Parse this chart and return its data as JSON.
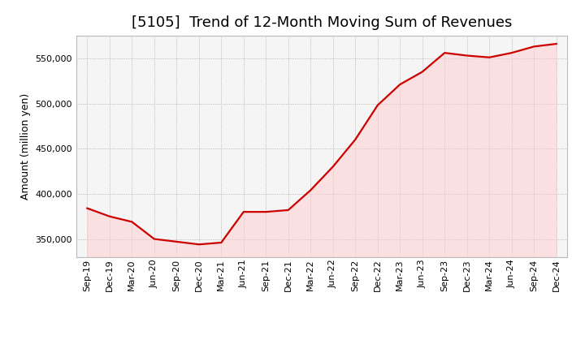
{
  "title": "[5105]  Trend of 12-Month Moving Sum of Revenues",
  "ylabel": "Amount (million yen)",
  "line_color": "#cc0000",
  "fill_color": "#ffcccc",
  "fill_alpha": 0.5,
  "background_color": "#ffffff",
  "plot_bg_color": "#f5f5f5",
  "grid_color": "#999999",
  "labels": [
    "Sep-19",
    "Dec-19",
    "Mar-20",
    "Jun-20",
    "Sep-20",
    "Dec-20",
    "Mar-21",
    "Jun-21",
    "Sep-21",
    "Dec-21",
    "Mar-22",
    "Jun-22",
    "Sep-22",
    "Dec-22",
    "Mar-23",
    "Jun-23",
    "Sep-23",
    "Dec-23",
    "Mar-24",
    "Jun-24",
    "Sep-24",
    "Dec-24"
  ],
  "values": [
    384000,
    375000,
    369000,
    350000,
    347000,
    344000,
    346000,
    380000,
    380000,
    382000,
    404000,
    430000,
    460000,
    498000,
    521000,
    535000,
    556000,
    553000,
    551000,
    556000,
    563000,
    566000
  ],
  "ylim": [
    330000,
    575000
  ],
  "yticks": [
    350000,
    400000,
    450000,
    500000,
    550000
  ],
  "title_fontsize": 13,
  "label_fontsize": 9,
  "tick_fontsize": 8,
  "line_width": 1.6
}
